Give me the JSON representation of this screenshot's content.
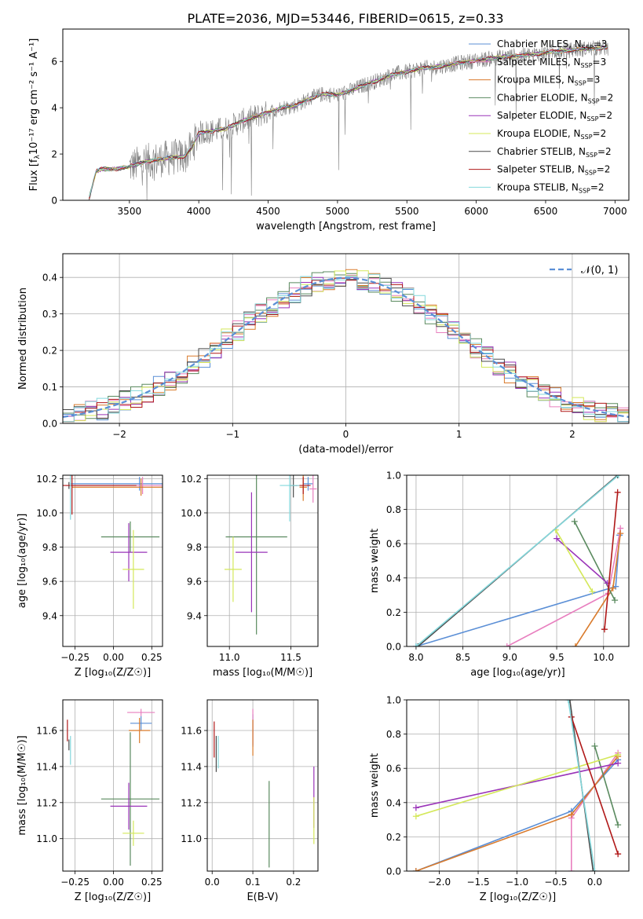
{
  "title": "PLATE=2036, MJD=53446, FIBERID=0615, z=0.33",
  "colors": {
    "Chabrier MILES": "#5b8fd6",
    "Salpeter MILES": "#e87fbf",
    "Kroupa MILES": "#d97a2b",
    "Chabrier ELODIE": "#5a8a5f",
    "Salpeter ELODIE": "#9a34b8",
    "Kroupa ELODIE": "#d4e85a",
    "Chabrier STELIB": "#4a4a4a",
    "Salpeter STELIB": "#b01818",
    "Kroupa STELIB": "#84d8dc"
  },
  "legend_entries": [
    {
      "name": "Chabrier MILES, N",
      "sub": "SSP",
      "suffix": "=3",
      "color": "#5b8fd6"
    },
    {
      "name": "Salpeter MILES, N",
      "sub": "SSP",
      "suffix": "=3",
      "color": "#e87fbf"
    },
    {
      "name": "Kroupa MILES, N",
      "sub": "SSP",
      "suffix": "=3",
      "color": "#d97a2b"
    },
    {
      "name": "Chabrier ELODIE, N",
      "sub": "SSP",
      "suffix": "=2",
      "color": "#5a8a5f"
    },
    {
      "name": "Salpeter ELODIE, N",
      "sub": "SSP",
      "suffix": "=2",
      "color": "#9a34b8"
    },
    {
      "name": "Kroupa ELODIE, N",
      "sub": "SSP",
      "suffix": "=2",
      "color": "#d4e85a"
    },
    {
      "name": "Chabrier STELIB, N",
      "sub": "SSP",
      "suffix": "=2",
      "color": "#4a4a4a"
    },
    {
      "name": "Salpeter STELIB, N",
      "sub": "SSP",
      "suffix": "=2",
      "color": "#b01818"
    },
    {
      "name": "Kroupa STELIB, N",
      "sub": "SSP",
      "suffix": "=2",
      "color": "#84d8dc"
    }
  ],
  "chart_data": [
    {
      "id": "spectrum",
      "type": "line",
      "xlabel": "wavelength [Angstrom, rest frame]",
      "ylabel": "Flux [f",
      "ylabel_sub": "λ",
      "ylabel_rest": "10⁻¹⁷ erg cm⁻² s⁻¹ A⁻¹]",
      "xlim": [
        3020,
        7100
      ],
      "ylim": [
        0,
        7.4
      ],
      "xticks": [
        3500,
        4000,
        4500,
        5000,
        5500,
        6000,
        6500,
        7000
      ],
      "yticks": [
        0,
        2,
        4,
        6
      ],
      "data_color": "#808080",
      "model_anchors": {
        "x": [
          3210,
          3260,
          3300,
          3400,
          3500,
          3600,
          3700,
          3800,
          3900,
          3950,
          4000,
          4100,
          4200,
          4300,
          4400,
          4500,
          4600,
          4700,
          4800,
          4900,
          5000,
          5100,
          5200,
          5300,
          5400,
          5500,
          5600,
          5700,
          5800,
          5900,
          6000,
          6200,
          6400,
          6600,
          6800,
          6950
        ],
        "y": [
          0.1,
          1.25,
          1.35,
          1.35,
          1.45,
          1.65,
          1.75,
          1.85,
          1.9,
          2.3,
          2.9,
          3.0,
          3.1,
          3.4,
          3.6,
          3.8,
          4.0,
          4.1,
          4.4,
          4.6,
          4.55,
          4.75,
          5.0,
          5.2,
          5.45,
          5.55,
          5.7,
          5.75,
          5.85,
          5.95,
          6.05,
          6.2,
          6.3,
          6.45,
          6.55,
          6.6
        ]
      },
      "data_start": 3500
    },
    {
      "id": "residual-histogram",
      "type": "area",
      "xlabel": "(data-model)/error",
      "ylabel": "Normed distribution",
      "xlim": [
        -2.5,
        2.5
      ],
      "ylim": [
        0,
        0.465
      ],
      "xticks": [
        -2,
        -1,
        0,
        1,
        2
      ],
      "yticks": [
        0.0,
        0.1,
        0.2,
        0.3,
        0.4
      ],
      "bins": 50,
      "reference_curve": {
        "name": "𝒩(0, 1)",
        "mean": 0,
        "sigma": 1,
        "color": "#5b8fd6"
      }
    },
    {
      "id": "age-vs-metallicity",
      "type": "scatter",
      "xlabel": "Z [log₁₀(Z/Z☉)]",
      "ylabel": "age  [log₁₀(age/yr)]",
      "xlim": [
        -0.33,
        0.32
      ],
      "ylim": [
        9.22,
        10.22
      ],
      "xticks": [
        -0.25,
        0.0,
        0.25
      ],
      "yticks": [
        9.4,
        9.6,
        9.8,
        10.0,
        10.2
      ],
      "points": [
        {
          "model": "Chabrier MILES",
          "x": 0.17,
          "y": 10.17,
          "xerr": 0.45,
          "yerr": 0.04
        },
        {
          "model": "Salpeter MILES",
          "x": 0.19,
          "y": 10.16,
          "xerr": 0.5,
          "yerr": 0.05
        },
        {
          "model": "Kroupa MILES",
          "x": 0.18,
          "y": 10.15,
          "xerr": 0.45,
          "yerr": 0.05
        },
        {
          "model": "Chabrier ELODIE",
          "x": 0.11,
          "y": 9.86,
          "xerr": 0.19,
          "yerr": 0.09
        },
        {
          "model": "Salpeter ELODIE",
          "x": 0.1,
          "y": 9.77,
          "xerr": 0.12,
          "yerr": 0.17
        },
        {
          "model": "Kroupa ELODIE",
          "x": 0.13,
          "y": 9.67,
          "xerr": 0.07,
          "yerr": 0.23
        },
        {
          "model": "Chabrier STELIB",
          "x": -0.29,
          "y": 10.16,
          "xerr": 0.0,
          "yerr": 0.02
        },
        {
          "model": "Salpeter STELIB",
          "x": -0.27,
          "y": 10.16,
          "xerr": 0.42,
          "yerr": 0.17
        },
        {
          "model": "Kroupa STELIB",
          "x": -0.28,
          "y": 10.16,
          "xerr": 0.0,
          "yerr": 0.2
        }
      ]
    },
    {
      "id": "age-vs-mass",
      "type": "scatter",
      "xlabel": "mass [log₁₀(M/M☉)]",
      "ylabel": "",
      "xlim": [
        10.82,
        11.72
      ],
      "ylim": [
        9.22,
        10.22
      ],
      "xticks": [
        11.0,
        11.5
      ],
      "yticks": [
        9.4,
        9.6,
        9.8,
        10.0,
        10.2
      ],
      "points": [
        {
          "model": "Chabrier MILES",
          "x": 11.64,
          "y": 10.17,
          "xerr": 0.04,
          "yerr": 0.04
        },
        {
          "model": "Salpeter MILES",
          "x": 11.68,
          "y": 10.14,
          "xerr": 0.03,
          "yerr": 0.08
        },
        {
          "model": "Kroupa MILES",
          "x": 11.6,
          "y": 10.15,
          "xerr": 0.03,
          "yerr": 0.08
        },
        {
          "model": "Chabrier ELODIE",
          "x": 11.22,
          "y": 9.86,
          "xerr": 0.25,
          "yerr": 0.57
        },
        {
          "model": "Salpeter ELODIE",
          "x": 11.18,
          "y": 9.77,
          "xerr": 0.13,
          "yerr": 0.35
        },
        {
          "model": "Kroupa ELODIE",
          "x": 11.03,
          "y": 9.67,
          "xerr": 0.07,
          "yerr": 0.19
        },
        {
          "model": "Chabrier STELIB",
          "x": 11.52,
          "y": 10.16,
          "xerr": 0.03,
          "yerr": 0.07
        },
        {
          "model": "Salpeter STELIB",
          "x": 11.6,
          "y": 10.16,
          "xerr": 0.06,
          "yerr": 0.05
        },
        {
          "model": "Kroupa STELIB",
          "x": 11.49,
          "y": 10.16,
          "xerr": 0.08,
          "yerr": 0.21
        }
      ]
    },
    {
      "id": "weight-vs-age",
      "type": "line",
      "xlabel": "age  [log₁₀(age/yr)]",
      "ylabel": "mass weight",
      "xlim": [
        7.9,
        10.27
      ],
      "ylim": [
        0,
        1
      ],
      "xticks": [
        8.0,
        8.5,
        9.0,
        9.5,
        10.0
      ],
      "yticks": [
        0.0,
        0.2,
        0.4,
        0.6,
        0.8,
        1.0
      ],
      "series": [
        {
          "model": "Chabrier MILES",
          "x": [
            8.0,
            10.13,
            10.17
          ],
          "y": [
            0.0,
            0.35,
            0.65
          ]
        },
        {
          "model": "Salpeter MILES",
          "x": [
            8.97,
            10.05,
            10.18
          ],
          "y": [
            0.0,
            0.31,
            0.69
          ]
        },
        {
          "model": "Kroupa MILES",
          "x": [
            9.7,
            10.1,
            10.18
          ],
          "y": [
            0.0,
            0.34,
            0.66
          ]
        },
        {
          "model": "Chabrier ELODIE",
          "x": [
            9.69,
            10.12
          ],
          "y": [
            0.73,
            0.27
          ]
        },
        {
          "model": "Salpeter ELODIE",
          "x": [
            9.5,
            10.04
          ],
          "y": [
            0.63,
            0.37
          ]
        },
        {
          "model": "Kroupa ELODIE",
          "x": [
            9.49,
            9.88
          ],
          "y": [
            0.68,
            0.32
          ]
        },
        {
          "model": "Chabrier STELIB",
          "x": [
            8.02,
            10.15
          ],
          "y": [
            0.0,
            1.0
          ]
        },
        {
          "model": "Salpeter STELIB",
          "x": [
            10.01,
            10.15
          ],
          "y": [
            0.1,
            0.9
          ]
        },
        {
          "model": "Kroupa STELIB",
          "x": [
            8.0,
            10.16
          ],
          "y": [
            0.0,
            1.0
          ]
        }
      ]
    },
    {
      "id": "mass-vs-metallicity",
      "type": "scatter",
      "xlabel": "Z [log₁₀(Z/Z☉)]",
      "ylabel": "mass [log₁₀(M/M☉)]",
      "xlim": [
        -0.33,
        0.32
      ],
      "ylim": [
        10.82,
        11.77
      ],
      "xticks": [
        -0.25,
        0.0,
        0.25
      ],
      "yticks": [
        11.0,
        11.2,
        11.4,
        11.6
      ],
      "points": [
        {
          "model": "Chabrier MILES",
          "x": 0.18,
          "y": 11.64,
          "xerr": 0.07,
          "yerr": 0.04
        },
        {
          "model": "Salpeter MILES",
          "x": 0.18,
          "y": 11.7,
          "xerr": 0.09,
          "yerr": 0.02
        },
        {
          "model": "Kroupa MILES",
          "x": 0.17,
          "y": 11.6,
          "xerr": 0.07,
          "yerr": 0.07
        },
        {
          "model": "Chabrier ELODIE",
          "x": 0.11,
          "y": 11.22,
          "xerr": 0.19,
          "yerr": 0.37
        },
        {
          "model": "Salpeter ELODIE",
          "x": 0.1,
          "y": 11.18,
          "xerr": 0.12,
          "yerr": 0.13
        },
        {
          "model": "Kroupa ELODIE",
          "x": 0.13,
          "y": 11.03,
          "xerr": 0.07,
          "yerr": 0.07
        },
        {
          "model": "Chabrier STELIB",
          "x": -0.29,
          "y": 11.52,
          "xerr": 0.0,
          "yerr": 0.03
        },
        {
          "model": "Salpeter STELIB",
          "x": -0.3,
          "y": 11.6,
          "xerr": 0.0,
          "yerr": 0.06
        },
        {
          "model": "Kroupa STELIB",
          "x": -0.28,
          "y": 11.49,
          "xerr": 0.0,
          "yerr": 0.08
        }
      ]
    },
    {
      "id": "mass-vs-extinction",
      "type": "scatter",
      "xlabel": "E(B-V)",
      "ylabel": "",
      "xlim": [
        -0.012,
        0.26
      ],
      "ylim": [
        10.82,
        11.77
      ],
      "xticks": [
        0.0,
        0.1,
        0.2
      ],
      "yticks": [
        11.0,
        11.2,
        11.4,
        11.6
      ],
      "points": [
        {
          "model": "Chabrier MILES",
          "x": 0.1,
          "y": 11.6,
          "xerr": 0.0,
          "yerr": 0.09
        },
        {
          "model": "Salpeter MILES",
          "x": 0.1,
          "y": 11.62,
          "xerr": 0.0,
          "yerr": 0.1
        },
        {
          "model": "Kroupa MILES",
          "x": 0.1,
          "y": 11.56,
          "xerr": 0.0,
          "yerr": 0.1
        },
        {
          "model": "Chabrier ELODIE",
          "x": 0.14,
          "y": 11.08,
          "xerr": 0.0,
          "yerr": 0.24
        },
        {
          "model": "Salpeter ELODIE",
          "x": 0.25,
          "y": 11.23,
          "xerr": 0.0,
          "yerr": 0.17
        },
        {
          "model": "Kroupa ELODIE",
          "x": 0.25,
          "y": 11.1,
          "xerr": 0.0,
          "yerr": 0.13
        },
        {
          "model": "Chabrier STELIB",
          "x": 0.01,
          "y": 11.47,
          "xerr": 0.0,
          "yerr": 0.1
        },
        {
          "model": "Salpeter STELIB",
          "x": 0.005,
          "y": 11.55,
          "xerr": 0.0,
          "yerr": 0.1
        },
        {
          "model": "Kroupa STELIB",
          "x": 0.015,
          "y": 11.48,
          "xerr": 0.0,
          "yerr": 0.09
        }
      ]
    },
    {
      "id": "weight-vs-metallicity",
      "type": "line",
      "xlabel": "Z [log₁₀(Z/Z☉)]",
      "ylabel": "mass weight",
      "xlim": [
        -2.42,
        0.44
      ],
      "ylim": [
        0,
        1
      ],
      "xticks": [
        -2.0,
        -1.5,
        -1.0,
        -0.5,
        0.0
      ],
      "yticks": [
        0.0,
        0.2,
        0.4,
        0.6,
        0.8,
        1.0
      ],
      "series": [
        {
          "model": "Chabrier MILES",
          "x": [
            -2.3,
            -0.3,
            0.3
          ],
          "y": [
            0.0,
            0.35,
            0.65
          ]
        },
        {
          "model": "Salpeter MILES",
          "x": [
            -0.3,
            -0.3,
            0.3
          ],
          "y": [
            0.0,
            0.31,
            0.69
          ]
        },
        {
          "model": "Kroupa MILES",
          "x": [
            -2.3,
            -0.3,
            0.3
          ],
          "y": [
            0.0,
            0.33,
            0.67
          ]
        },
        {
          "model": "Chabrier ELODIE",
          "x": [
            0.0,
            0.3
          ],
          "y": [
            0.73,
            0.27
          ]
        },
        {
          "model": "Salpeter ELODIE",
          "x": [
            -2.3,
            0.3
          ],
          "y": [
            0.37,
            0.63
          ]
        },
        {
          "model": "Kroupa ELODIE",
          "x": [
            -2.3,
            0.3
          ],
          "y": [
            0.32,
            0.68
          ]
        },
        {
          "model": "Chabrier STELIB",
          "x": [
            -0.32,
            -0.02
          ],
          "y": [
            1.0,
            0.0
          ]
        },
        {
          "model": "Salpeter STELIB",
          "x": [
            -0.3,
            0.3
          ],
          "y": [
            0.9,
            0.1
          ]
        },
        {
          "model": "Kroupa STELIB",
          "x": [
            -0.34,
            0.0
          ],
          "y": [
            1.0,
            0.0
          ]
        }
      ]
    }
  ]
}
